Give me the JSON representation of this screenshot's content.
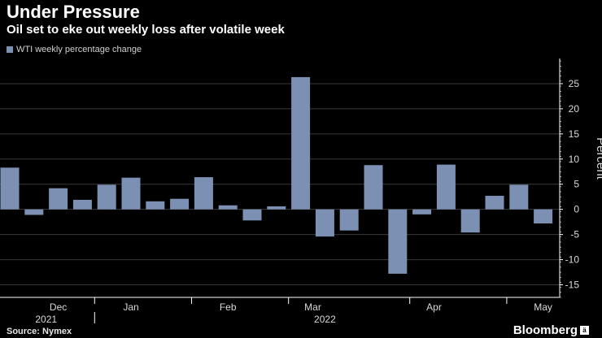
{
  "header": {
    "title": "Under Pressure",
    "subtitle": "Oil set to eke out weekly loss after volatile week"
  },
  "footer": {
    "source": "Source: Nymex",
    "brand": "Bloomberg",
    "brand_badge": "ä"
  },
  "colors": {
    "bar": "#7b90b3",
    "background": "#000000",
    "grid": "#3a3a3a",
    "axis": "#ffffff"
  },
  "chart_data": {
    "type": "bar",
    "title": "Under Pressure",
    "subtitle": "Oil set to eke out weekly loss after volatile week",
    "legend": [
      "WTI weekly percentage change"
    ],
    "legend_position": "top-left",
    "ylabel": "Percent",
    "ylim": [
      -17.5,
      30
    ],
    "yticks": [
      -15,
      -10,
      -5,
      0,
      5,
      10,
      15,
      20,
      25
    ],
    "grid": true,
    "y_axis_side": "right",
    "series": [
      {
        "name": "WTI weekly percentage change",
        "values": [
          8.3,
          -1.1,
          4.2,
          1.9,
          4.9,
          6.3,
          1.6,
          2.1,
          6.4,
          0.8,
          -2.2,
          0.6,
          26.3,
          -5.4,
          -4.2,
          8.8,
          -12.8,
          -1.0,
          8.9,
          -4.6,
          2.7,
          4.9,
          -2.8
        ]
      }
    ],
    "x_month_labels": [
      "Dec",
      "Jan",
      "Feb",
      "Mar",
      "Apr",
      "May"
    ],
    "x_month_label_bar_index": [
      2,
      5,
      9,
      12.5,
      17.5,
      22
    ],
    "x_month_separator_after_bar": [
      3.5,
      7.5,
      11.5,
      16.5,
      20.5
    ],
    "x_year_labels": [
      "2021",
      "2022"
    ],
    "x_year_label_bar_index": [
      1.5,
      13
    ],
    "x_year_separator_after_bar": [
      3.5
    ]
  }
}
